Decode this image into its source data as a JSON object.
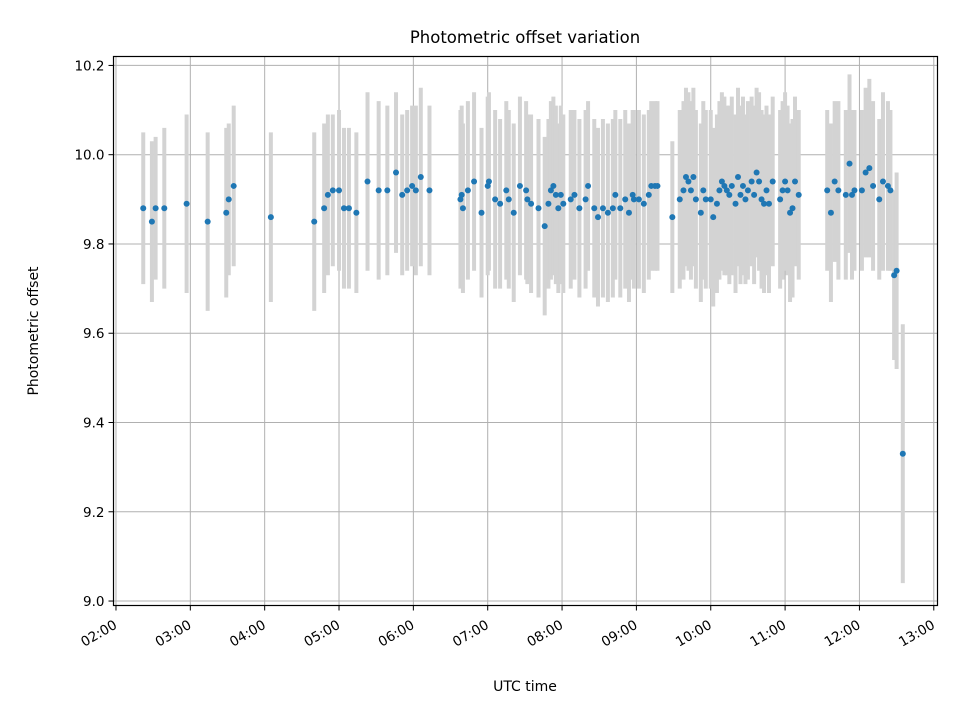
{
  "chart_data": {
    "type": "scatter",
    "title": "Photometric offset variation",
    "xlabel": "UTC time",
    "ylabel": "Photometric offset",
    "x_ticks": [
      "02:00",
      "03:00",
      "04:00",
      "05:00",
      "06:00",
      "07:00",
      "08:00",
      "09:00",
      "10:00",
      "11:00",
      "12:00",
      "13:00"
    ],
    "y_ticks": [
      "9.0",
      "9.2",
      "9.4",
      "9.6",
      "9.8",
      "10.0",
      "10.2"
    ],
    "xlim": [
      "01:58",
      "13:03"
    ],
    "ylim": [
      8.99,
      10.22
    ],
    "grid": true,
    "marker_color": "#1f77b4",
    "errorbar_color": "#d3d3d3",
    "series": [
      {
        "x": [
          "02:22",
          "02:29",
          "02:32",
          "02:39",
          "02:57",
          "03:14",
          "03:29",
          "03:31",
          "03:35",
          "04:05",
          "04:40",
          "04:48",
          "04:51",
          "04:55",
          "05:00",
          "05:04",
          "05:08",
          "05:14",
          "05:23",
          "05:32",
          "05:39",
          "05:46",
          "05:51",
          "05:55",
          "05:59",
          "06:02",
          "06:06",
          "06:13",
          "06:38",
          "06:39",
          "06:40",
          "06:44",
          "06:49",
          "06:55",
          "07:00",
          "07:01",
          "07:06",
          "07:10",
          "07:15",
          "07:17",
          "07:21",
          "07:26",
          "07:31",
          "07:32",
          "07:35",
          "07:41",
          "07:46",
          "07:49",
          "07:51",
          "07:53",
          "07:55",
          "07:57",
          "07:59",
          "08:01",
          "08:07",
          "08:10",
          "08:14",
          "08:19",
          "08:21",
          "08:26",
          "08:29",
          "08:33",
          "08:37",
          "08:41",
          "08:43",
          "08:47",
          "08:51",
          "08:54",
          "08:57",
          "08:58",
          "09:02",
          "09:06",
          "09:10",
          "09:12",
          "09:15",
          "09:17",
          "09:29",
          "09:35",
          "09:38",
          "09:40",
          "09:42",
          "09:44",
          "09:46",
          "09:48",
          "09:52",
          "09:54",
          "09:56",
          "10:00",
          "10:02",
          "10:05",
          "10:07",
          "10:09",
          "10:11",
          "10:13",
          "10:15",
          "10:17",
          "10:20",
          "10:22",
          "10:24",
          "10:26",
          "10:28",
          "10:30",
          "10:33",
          "10:35",
          "10:37",
          "10:39",
          "10:41",
          "10:43",
          "10:45",
          "10:47",
          "10:50",
          "10:56",
          "10:58",
          "11:00",
          "11:02",
          "11:04",
          "11:06",
          "11:08",
          "11:11",
          "11:34",
          "11:37",
          "11:40",
          "11:43",
          "11:49",
          "11:52",
          "11:54",
          "11:56",
          "12:02",
          "12:05",
          "12:08",
          "12:11",
          "12:16",
          "12:19",
          "12:23",
          "12:25",
          "12:28",
          "12:30",
          "12:35"
        ],
        "y": [
          9.88,
          9.85,
          9.88,
          9.88,
          9.89,
          9.85,
          9.87,
          9.9,
          9.93,
          9.86,
          9.85,
          9.88,
          9.91,
          9.92,
          9.92,
          9.88,
          9.88,
          9.87,
          9.94,
          9.92,
          9.92,
          9.96,
          9.91,
          9.92,
          9.93,
          9.92,
          9.95,
          9.92,
          9.9,
          9.91,
          9.88,
          9.92,
          9.94,
          9.87,
          9.93,
          9.94,
          9.9,
          9.89,
          9.92,
          9.9,
          9.87,
          9.93,
          9.92,
          9.9,
          9.89,
          9.88,
          9.84,
          9.89,
          9.92,
          9.93,
          9.91,
          9.88,
          9.91,
          9.89,
          9.9,
          9.91,
          9.88,
          9.9,
          9.93,
          9.88,
          9.86,
          9.88,
          9.87,
          9.88,
          9.91,
          9.88,
          9.9,
          9.87,
          9.91,
          9.9,
          9.9,
          9.89,
          9.91,
          9.93,
          9.93,
          9.93,
          9.86,
          9.9,
          9.92,
          9.95,
          9.94,
          9.92,
          9.95,
          9.9,
          9.87,
          9.92,
          9.9,
          9.9,
          9.86,
          9.89,
          9.92,
          9.94,
          9.93,
          9.92,
          9.91,
          9.93,
          9.89,
          9.95,
          9.91,
          9.93,
          9.9,
          9.92,
          9.94,
          9.91,
          9.96,
          9.94,
          9.9,
          9.89,
          9.92,
          9.89,
          9.94,
          9.9,
          9.92,
          9.94,
          9.92,
          9.87,
          9.88,
          9.94,
          9.91,
          9.92,
          9.87,
          9.94,
          9.92,
          9.91,
          9.98,
          9.91,
          9.92,
          9.92,
          9.96,
          9.97,
          9.93,
          9.9,
          9.94,
          9.93,
          9.92,
          9.73,
          9.74,
          9.33
        ],
        "err": [
          0.17,
          0.18,
          0.16,
          0.18,
          0.2,
          0.2,
          0.19,
          0.17,
          0.18,
          0.19,
          0.2,
          0.19,
          0.18,
          0.17,
          0.18,
          0.18,
          0.18,
          0.18,
          0.2,
          0.2,
          0.19,
          0.18,
          0.18,
          0.18,
          0.18,
          0.19,
          0.2,
          0.19,
          0.2,
          0.2,
          0.19,
          0.2,
          0.2,
          0.19,
          0.2,
          0.2,
          0.2,
          0.19,
          0.2,
          0.2,
          0.2,
          0.2,
          0.2,
          0.19,
          0.2,
          0.2,
          0.2,
          0.19,
          0.2,
          0.2,
          0.2,
          0.19,
          0.2,
          0.2,
          0.2,
          0.19,
          0.2,
          0.2,
          0.19,
          0.2,
          0.2,
          0.2,
          0.2,
          0.2,
          0.19,
          0.2,
          0.2,
          0.2,
          0.19,
          0.2,
          0.2,
          0.2,
          0.19,
          0.19,
          0.19,
          0.19,
          0.17,
          0.2,
          0.2,
          0.2,
          0.2,
          0.2,
          0.2,
          0.2,
          0.2,
          0.2,
          0.2,
          0.2,
          0.2,
          0.2,
          0.2,
          0.2,
          0.2,
          0.19,
          0.2,
          0.2,
          0.2,
          0.2,
          0.2,
          0.2,
          0.19,
          0.2,
          0.19,
          0.2,
          0.19,
          0.2,
          0.2,
          0.2,
          0.19,
          0.2,
          0.19,
          0.2,
          0.2,
          0.2,
          0.19,
          0.2,
          0.2,
          0.19,
          0.19,
          0.18,
          0.2,
          0.18,
          0.2,
          0.19,
          0.2,
          0.19,
          0.18,
          0.18,
          0.19,
          0.2,
          0.19,
          0.18,
          0.2,
          0.19,
          0.18,
          0.19,
          0.22,
          0.29
        ]
      }
    ]
  }
}
